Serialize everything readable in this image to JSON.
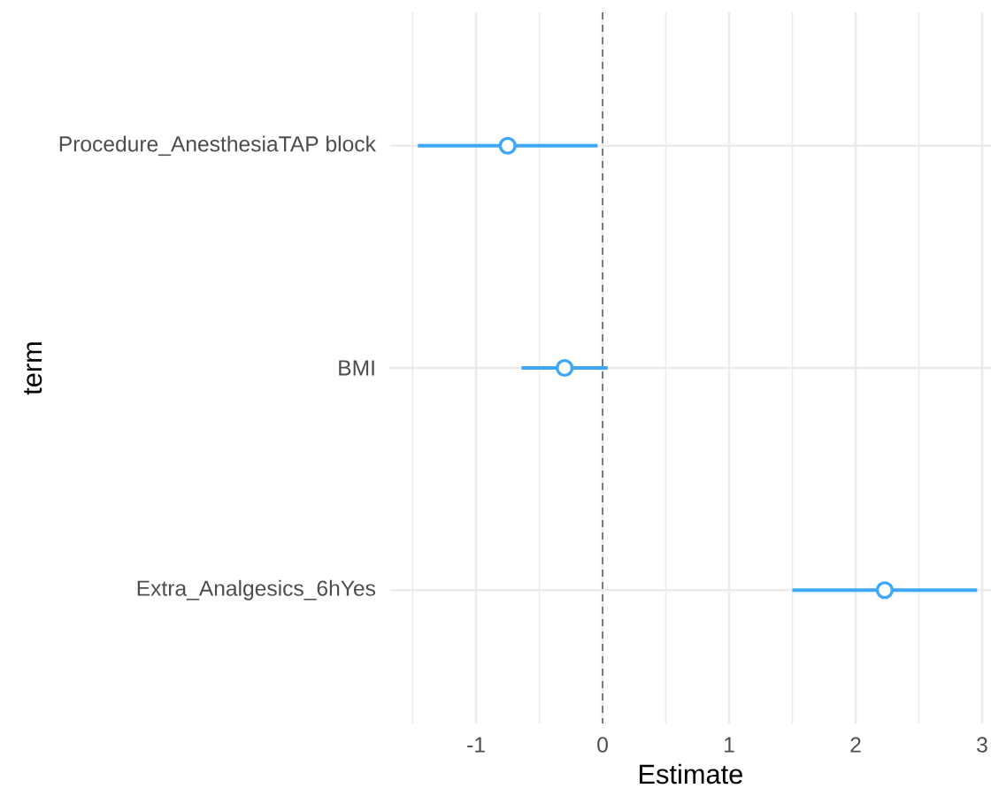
{
  "chart_data": {
    "type": "scatter",
    "orientation": "horizontal",
    "xlabel": "Estimate",
    "ylabel": "term",
    "categories": [
      "Procedure_AnesthesiaTAP block",
      "BMI",
      "Extra_Analgesics_6hYes"
    ],
    "values": [
      -0.75,
      -0.3,
      2.23
    ],
    "errors": [
      [
        -1.46,
        -0.04
      ],
      [
        -0.64,
        0.04
      ],
      [
        1.5,
        2.96
      ]
    ],
    "color": "#3fa7f5",
    "marker": "circle",
    "xlim": [
      -1.68,
      3.07
    ],
    "xticks": [
      {
        "value": -1.5,
        "label": null
      },
      -1,
      {
        "value": -0.5,
        "label": null
      },
      0,
      {
        "value": 0.5,
        "label": null
      },
      1,
      {
        "value": 1.5,
        "label": null
      },
      2,
      {
        "value": 2.5,
        "label": null
      },
      3
    ],
    "ref_lines": [
      {
        "axis": "x",
        "value": 0,
        "line_style": "dashed"
      }
    ],
    "grid": true
  }
}
